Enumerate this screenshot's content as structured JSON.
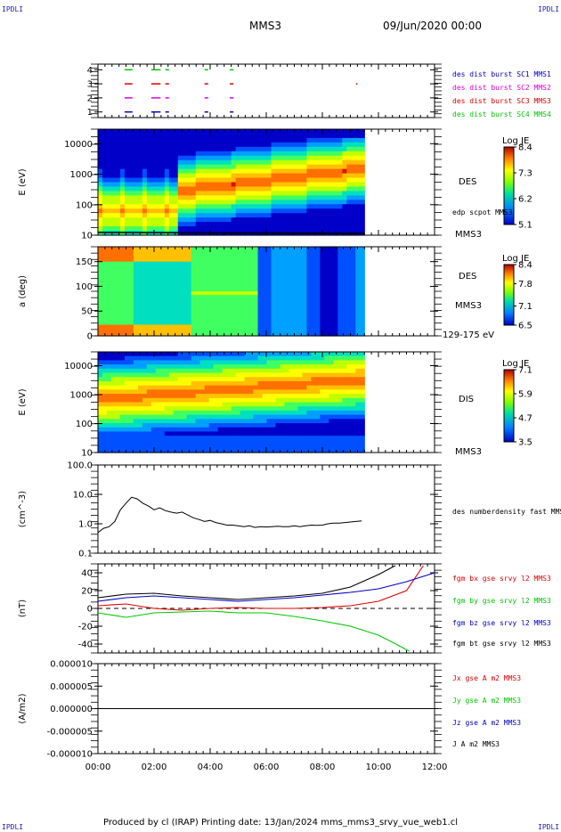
{
  "header": {
    "corner_tl": "IPDLI",
    "corner_tr": "IPDLI",
    "corner_bl": "IPDLI",
    "corner_br": "IPDLI",
    "spacecraft": "MMS3",
    "date": "09/Jun/2020 00:00"
  },
  "footer": {
    "text": "Produced by cl (IRAP)    Printing date: 13/Jan/2024    mms_mms3_srvy_vue_web1.cl"
  },
  "colors": {
    "blue": "#0000c8",
    "magenta": "#e000e0",
    "red": "#e00000",
    "green": "#00c800",
    "black": "#000000"
  },
  "chart_data": [
    {
      "type": "scatter",
      "panel": "burst availability",
      "yticks": [
        "1",
        "2",
        "3",
        "4"
      ],
      "ylim": [
        0.6,
        4.4
      ],
      "xlim_hours": [
        0,
        12
      ],
      "legend": [
        "des dist burst SC1 MMS1",
        "des dist burst SC2 MMS2",
        "des dist burst SC3 MMS3",
        "des dist burst SC4 MMS4"
      ],
      "series": [
        {
          "name": "des dist burst SC1 MMS1",
          "level": 1,
          "color": "#0000c8",
          "intervals": [
            [
              0.95,
              1.2
            ],
            [
              1.9,
              2.2
            ],
            [
              2.4,
              2.5
            ],
            [
              3.8,
              3.9
            ],
            [
              4.7,
              4.8
            ]
          ]
        },
        {
          "name": "des dist burst SC2 MMS2",
          "level": 2,
          "color": "#e000e0",
          "intervals": [
            [
              0.95,
              1.2
            ],
            [
              1.9,
              2.2
            ],
            [
              2.4,
              2.5
            ],
            [
              3.8,
              3.9
            ],
            [
              4.7,
              4.8
            ]
          ]
        },
        {
          "name": "des dist burst SC3 MMS3",
          "level": 3,
          "color": "#e00000",
          "intervals": [
            [
              0.95,
              1.2
            ],
            [
              1.9,
              2.2
            ],
            [
              2.4,
              2.5
            ],
            [
              3.8,
              3.9
            ],
            [
              4.7,
              4.8
            ],
            [
              9.2,
              9.22
            ]
          ]
        },
        {
          "name": "des dist burst SC4 MMS4",
          "level": 4,
          "color": "#00c800",
          "intervals": [
            [
              0.95,
              1.2
            ],
            [
              1.9,
              2.2
            ],
            [
              2.4,
              2.5
            ],
            [
              3.8,
              3.9
            ],
            [
              4.7,
              4.8
            ]
          ]
        }
      ]
    },
    {
      "type": "heatmap",
      "panel": "DES energy spectrogram",
      "ylabel": "E (eV)",
      "yscale": "log",
      "yticks": [
        "10",
        "100",
        "1000",
        "10000"
      ],
      "ylim": [
        10,
        30000
      ],
      "label_right": "DES",
      "label_right2": "MMS3",
      "overlay_label": "edp scpot MMS3",
      "colorbar": {
        "title": "Log JE",
        "ticks": [
          "8.4",
          "7.3",
          "6.2",
          "5.1"
        ],
        "range": [
          5.1,
          8.4
        ]
      },
      "data_end_hours": 9.5
    },
    {
      "type": "heatmap",
      "panel": "DES pitch angle",
      "ylabel": "a (deg)",
      "yticks": [
        "0",
        "50",
        "100",
        "150"
      ],
      "ylim": [
        0,
        180
      ],
      "label_right": "DES",
      "label_right2": "MMS3",
      "label_right3": "129-175 eV",
      "colorbar": {
        "title": "Log JE",
        "ticks": [
          "8.4",
          "7.8",
          "7.1",
          "6.5"
        ],
        "range": [
          6.5,
          8.4
        ]
      },
      "data_end_hours": 9.5
    },
    {
      "type": "heatmap",
      "panel": "DIS energy spectrogram",
      "ylabel": "E (eV)",
      "yscale": "log",
      "yticks": [
        "10",
        "100",
        "1000",
        "10000"
      ],
      "ylim": [
        10,
        30000
      ],
      "label_right": "DIS",
      "label_right2": "MMS3",
      "colorbar": {
        "title": "Log JE",
        "ticks": [
          "7.1",
          "5.9",
          "4.7",
          "3.5"
        ],
        "range": [
          3.5,
          7.1
        ]
      },
      "data_end_hours": 9.5
    },
    {
      "type": "line",
      "panel": "density",
      "ylabel": "(cm^-3)",
      "yscale": "log",
      "yticks": [
        "0.1",
        "1.0",
        "10.0",
        "100.0"
      ],
      "ylim": [
        0.1,
        100
      ],
      "legend": [
        "des numberdensity fast MMS3"
      ],
      "series": [
        {
          "name": "des numberdensity fast MMS3",
          "color": "#000000",
          "x": [
            0,
            0.2,
            0.4,
            0.6,
            0.8,
            1.0,
            1.2,
            1.4,
            1.6,
            1.8,
            2.0,
            2.2,
            2.4,
            2.6,
            2.8,
            3.0,
            3.2,
            3.4,
            3.6,
            3.8,
            4.0,
            4.2,
            4.4,
            4.6,
            4.8,
            5.0,
            5.2,
            5.4,
            5.6,
            5.8,
            6.0,
            6.2,
            6.4,
            6.6,
            6.8,
            7.0,
            7.2,
            7.4,
            7.6,
            7.8,
            8.0,
            8.2,
            8.4,
            8.6,
            8.8,
            9.0,
            9.2,
            9.4
          ],
          "y": [
            0.5,
            0.7,
            0.8,
            1.2,
            3.0,
            5.0,
            8.0,
            7.0,
            5.0,
            4.0,
            3.0,
            3.5,
            2.8,
            2.5,
            2.3,
            2.5,
            2.0,
            1.6,
            1.4,
            1.2,
            1.3,
            1.1,
            1.0,
            0.9,
            0.9,
            0.85,
            0.8,
            0.85,
            0.75,
            0.8,
            0.78,
            0.8,
            0.82,
            0.8,
            0.8,
            0.85,
            0.8,
            0.85,
            0.9,
            0.88,
            0.9,
            1.0,
            1.05,
            1.05,
            1.1,
            1.15,
            1.2,
            1.25
          ]
        }
      ]
    },
    {
      "type": "line",
      "panel": "magnetic field",
      "ylabel": "(nT)",
      "yticks": [
        "-40",
        "-20",
        "0",
        "20",
        "40"
      ],
      "ylim": [
        -50,
        50
      ],
      "legend": [
        "fgm bx gse srvy l2 MMS3",
        "fgm by gse srvy l2 MMS3",
        "fgm bz gse srvy l2 MMS3",
        "fgm bt gse srvy l2 MMS3"
      ],
      "series": [
        {
          "name": "fgm bx gse srvy l2 MMS3",
          "color": "#e00000",
          "x": [
            0,
            1,
            2,
            3,
            4,
            5,
            6,
            7,
            8,
            9,
            10,
            11,
            11.6
          ],
          "y": [
            3,
            5,
            0,
            -2,
            0,
            1,
            0,
            0,
            1,
            3,
            8,
            20,
            48
          ]
        },
        {
          "name": "fgm by gse srvy l2 MMS3",
          "color": "#00c800",
          "x": [
            0,
            1,
            2,
            3,
            4,
            5,
            6,
            7,
            8,
            9,
            10,
            10.5,
            11.1
          ],
          "y": [
            -5,
            -10,
            -5,
            -4,
            -3,
            -5,
            -5,
            -9,
            -14,
            -20,
            -30,
            -38,
            -48
          ]
        },
        {
          "name": "fgm bz gse srvy l2 MMS3",
          "color": "#0000c8",
          "x": [
            0,
            1,
            2,
            3,
            4,
            5,
            6,
            7,
            8,
            9,
            10,
            11,
            12
          ],
          "y": [
            8,
            12,
            14,
            12,
            10,
            8,
            10,
            12,
            15,
            18,
            22,
            30,
            40
          ]
        },
        {
          "name": "fgm bt gse srvy l2 MMS3",
          "color": "#000000",
          "x": [
            0,
            1,
            2,
            3,
            4,
            5,
            6,
            7,
            8,
            9,
            10,
            10.6
          ],
          "y": [
            12,
            16,
            17,
            14,
            12,
            10,
            12,
            14,
            17,
            24,
            38,
            48
          ]
        }
      ]
    },
    {
      "type": "line",
      "panel": "current density",
      "ylabel": "(A/m2)",
      "yticks": [
        "-0.000010",
        "-0.000005",
        "0.000000",
        "0.000005",
        "0.000010"
      ],
      "ylim": [
        -1e-05,
        1e-05
      ],
      "legend": [
        "Jx gse A m2 MMS3",
        "Jy gse A m2 MMS3",
        "Jz gse A m2 MMS3",
        "J A m2 MMS3"
      ],
      "series": [
        {
          "name": "Jx gse A m2 MMS3",
          "color": "#e00000",
          "x": [
            0,
            12
          ],
          "y": [
            0,
            0
          ]
        },
        {
          "name": "Jy gse A m2 MMS3",
          "color": "#00c800",
          "x": [
            0,
            12
          ],
          "y": [
            0,
            0
          ]
        },
        {
          "name": "Jz gse A m2 MMS3",
          "color": "#0000c8",
          "x": [
            0,
            12
          ],
          "y": [
            0,
            0
          ]
        },
        {
          "name": "J A m2 MMS3",
          "color": "#000000",
          "x": [
            0,
            12
          ],
          "y": [
            0,
            0
          ]
        }
      ],
      "xticks": [
        "00:00",
        "02:00",
        "04:00",
        "06:00",
        "08:00",
        "10:00",
        "12:00"
      ]
    }
  ]
}
